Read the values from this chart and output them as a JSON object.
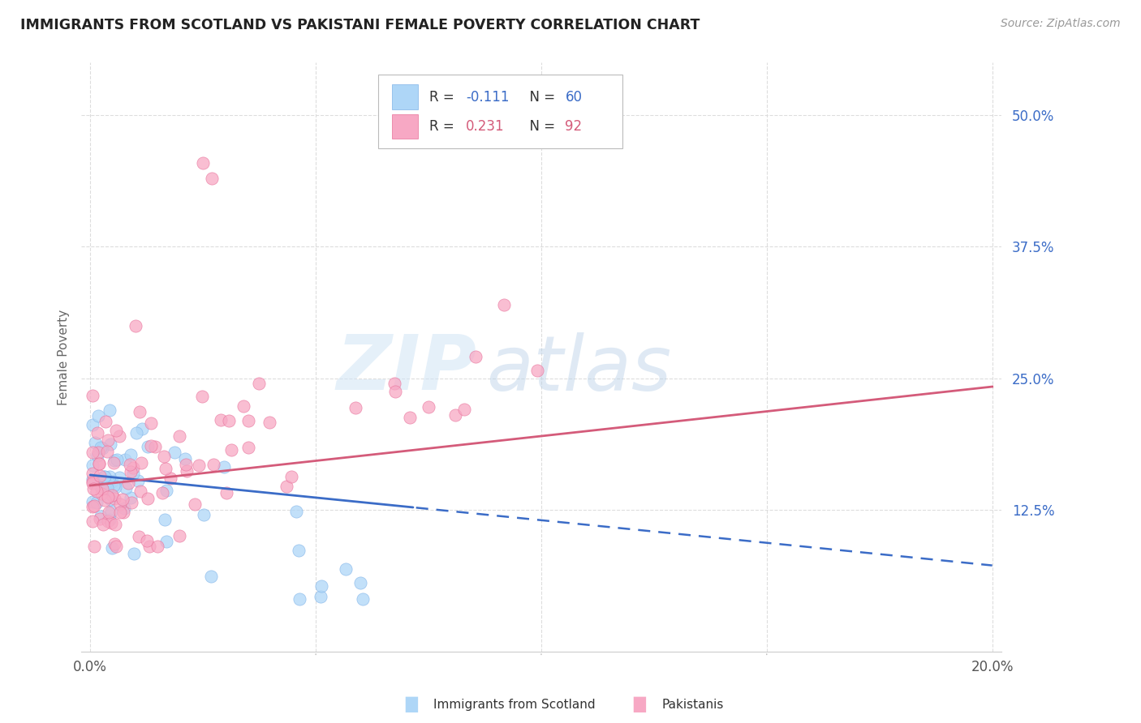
{
  "title": "IMMIGRANTS FROM SCOTLAND VS PAKISTANI FEMALE POVERTY CORRELATION CHART",
  "source": "Source: ZipAtlas.com",
  "ylabel": "Female Poverty",
  "xlim": [
    -0.002,
    0.202
  ],
  "ylim": [
    -0.01,
    0.55
  ],
  "yticks": [
    0.125,
    0.25,
    0.375,
    0.5
  ],
  "ytick_labels": [
    "12.5%",
    "25.0%",
    "37.5%",
    "50.0%"
  ],
  "xticks": [
    0.0,
    0.2
  ],
  "xtick_labels": [
    "0.0%",
    "20.0%"
  ],
  "blue_color": "#AED6F7",
  "blue_edge": "#7FB3E8",
  "pink_color": "#F7A8C4",
  "pink_edge": "#E87099",
  "blue_line_color": "#3B6CC7",
  "pink_line_color": "#D45B7A",
  "blue_label": "Immigrants from Scotland",
  "pink_label": "Pakistanis",
  "blue_R": -0.111,
  "blue_N": 60,
  "pink_R": 0.231,
  "pink_N": 92,
  "right_tick_color": "#3B6CC7",
  "watermark": "ZIPatlas",
  "grid_color": "#DDDDDD",
  "background_color": "#FFFFFF"
}
